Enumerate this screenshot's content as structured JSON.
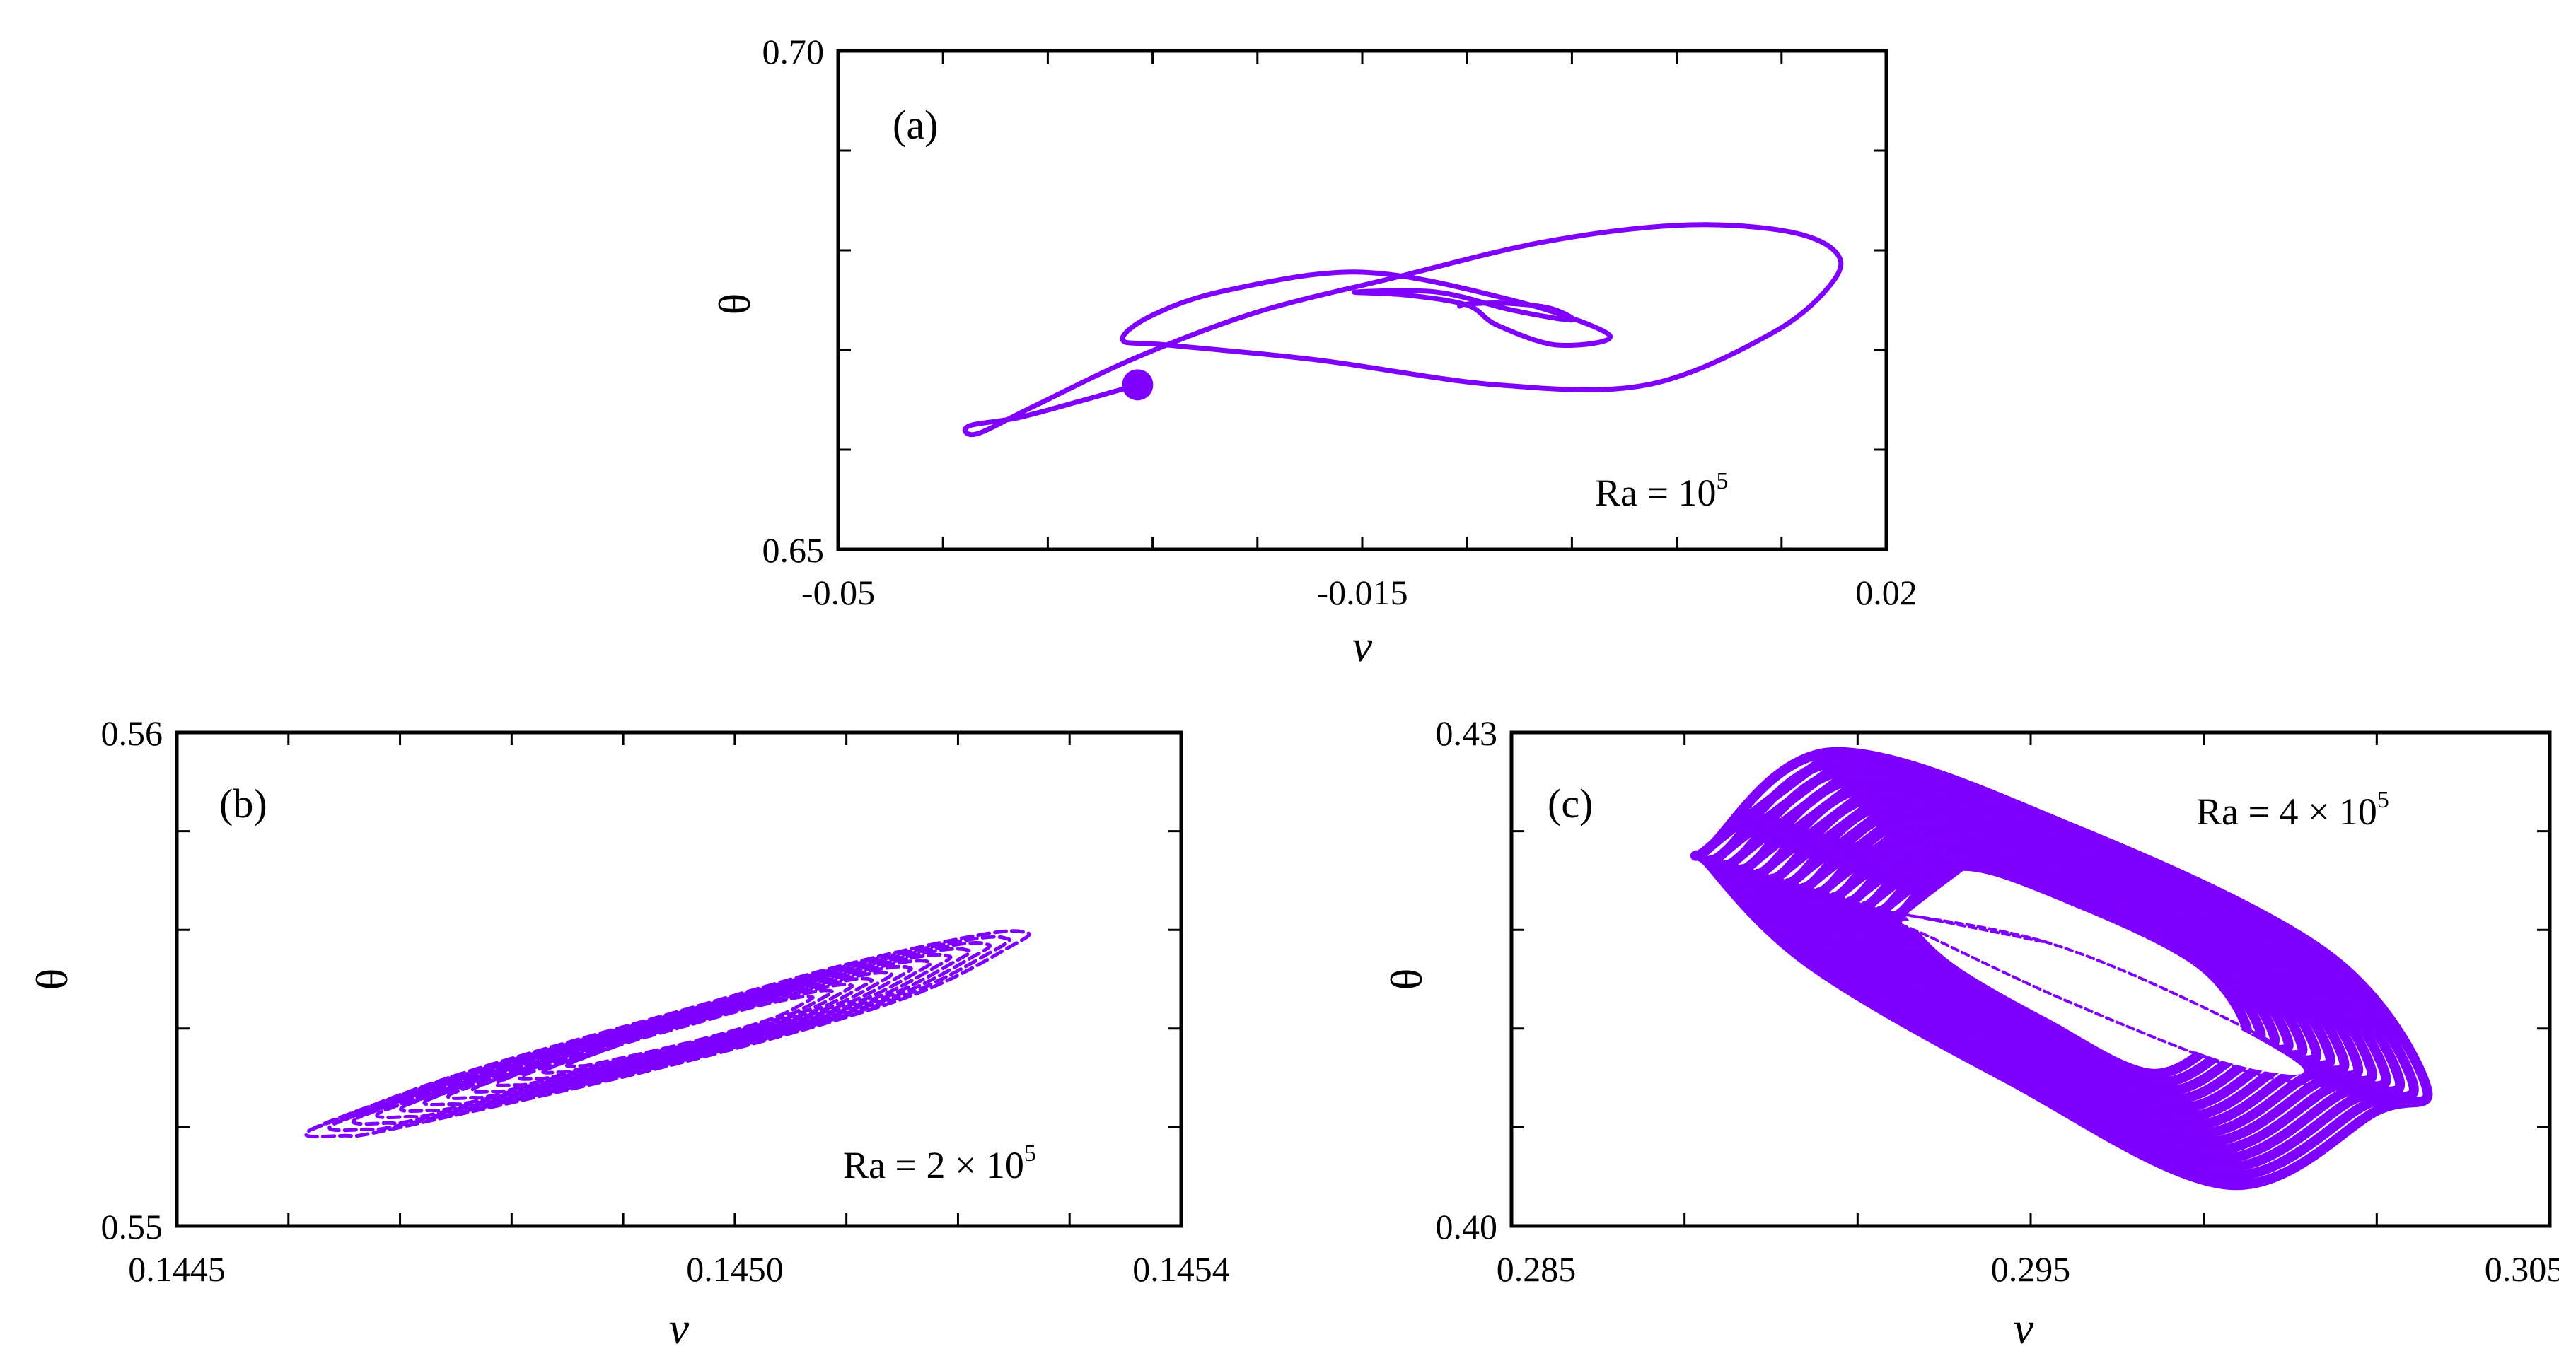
{
  "chart_data": [
    {
      "type": "line",
      "panel_label": "(a)",
      "xlabel": "v",
      "ylabel": "θ",
      "xlim": [
        -0.05,
        0.02
      ],
      "ylim": [
        0.65,
        0.7
      ],
      "x_ticks": [
        "-0.05",
        "-0.015",
        "0.02"
      ],
      "y_ticks": [
        "0.65",
        "0.70"
      ],
      "annotation": {
        "base": "Ra = 10",
        "exponent": "5"
      },
      "color": "#7f00ff",
      "series": [
        {
          "name": "trajectory",
          "points": [
            [
              -0.03,
              0.6665
            ],
            [
              -0.034,
              0.6648
            ],
            [
              -0.038,
              0.6632
            ],
            [
              -0.041,
              0.6625
            ],
            [
              -0.0415,
              0.6618
            ],
            [
              -0.0405,
              0.6617
            ],
            [
              -0.037,
              0.6643
            ],
            [
              -0.03,
              0.6693
            ],
            [
              -0.022,
              0.6738
            ],
            [
              -0.013,
              0.6772
            ],
            [
              -0.003,
              0.6808
            ],
            [
              0.006,
              0.6825
            ],
            [
              0.013,
              0.682
            ],
            [
              0.0165,
              0.68
            ],
            [
              0.0165,
              0.677
            ],
            [
              0.0125,
              0.6718
            ],
            [
              0.004,
              0.6665
            ],
            [
              -0.006,
              0.6665
            ],
            [
              -0.018,
              0.669
            ],
            [
              -0.028,
              0.6705
            ],
            [
              -0.031,
              0.671
            ],
            [
              -0.029,
              0.6735
            ],
            [
              -0.024,
              0.676
            ],
            [
              -0.015,
              0.6778
            ],
            [
              -0.005,
              0.675
            ],
            [
              0.0015,
              0.6715
            ],
            [
              -0.002,
              0.6705
            ],
            [
              -0.006,
              0.6725
            ],
            [
              -0.008,
              0.6745
            ],
            [
              -0.012,
              0.6755
            ],
            [
              -0.0155,
              0.6758
            ],
            [
              -0.01,
              0.6758
            ],
            [
              -0.005,
              0.674
            ],
            [
              -0.001,
              0.673
            ],
            [
              -0.0025,
              0.6742
            ],
            [
              -0.0055,
              0.6747
            ],
            [
              -0.008,
              0.6746
            ],
            [
              -0.0085,
              0.6744
            ]
          ]
        }
      ],
      "start_marker": [
        -0.03,
        0.6665
      ]
    },
    {
      "type": "line",
      "panel_label": "(b)",
      "xlabel": "v",
      "ylabel": "θ",
      "xlim": [
        0.1445,
        0.1454
      ],
      "ylim": [
        0.55,
        0.56
      ],
      "x_ticks": [
        "0.1445",
        "0.1450",
        "0.1454"
      ],
      "y_ticks": [
        "0.55",
        "0.56"
      ],
      "annotation": {
        "base": "Ra = 2 × 10",
        "exponent": "5"
      },
      "color": "#7f00ff",
      "series": [
        {
          "name": "attractor",
          "style": "dashed",
          "loop": [
            [
              0.14462,
              0.55195
            ],
            [
              0.14475,
              0.55305
            ],
            [
              0.14495,
              0.55435
            ],
            [
              0.1451,
              0.5553
            ],
            [
              0.14522,
              0.5559
            ],
            [
              0.14526,
              0.55595
            ],
            [
              0.14525,
              0.5557
            ],
            [
              0.14515,
              0.5546
            ],
            [
              0.14495,
              0.5533
            ],
            [
              0.1447,
              0.552
            ],
            [
              0.14465,
              0.55183
            ]
          ],
          "center": [
            0.14497,
            0.55397
          ],
          "scales": [
            1.0,
            0.94,
            0.88,
            0.82,
            0.76,
            0.7,
            0.64,
            0.58,
            0.52,
            0.46,
            0.4,
            0.34
          ]
        }
      ]
    },
    {
      "type": "line",
      "panel_label": "(c)",
      "xlabel": "v",
      "ylabel": "θ",
      "xlim": [
        0.2845,
        0.3055
      ],
      "ylim": [
        0.4,
        0.43
      ],
      "x_ticks": [
        "0.285",
        "0.295",
        "0.305"
      ],
      "y_ticks": [
        "0.40",
        "0.43"
      ],
      "annotation": {
        "base": "Ra = 4 × 10",
        "exponent": "5"
      },
      "color": "#7f00ff",
      "series": [
        {
          "name": "attractor",
          "style": "dense",
          "loop": [
            [
              0.2885,
              0.423
            ],
            [
              0.291,
              0.4288
            ],
            [
              0.296,
              0.424
            ],
            [
              0.301,
              0.4165
            ],
            [
              0.303,
              0.4085
            ],
            [
              0.302,
              0.407
            ],
            [
              0.299,
              0.4025
            ],
            [
              0.2945,
              0.409
            ],
            [
              0.2905,
              0.416
            ],
            [
              0.2885,
              0.422
            ]
          ],
          "center": [
            0.296,
            0.4155
          ],
          "scales": [
            1.0,
            0.96,
            0.92,
            0.88,
            0.84,
            0.8,
            0.76,
            0.72,
            0.68,
            0.64,
            0.6,
            0.56,
            0.52,
            0.48
          ],
          "hole": [
            [
              0.2925,
              0.4185
            ],
            [
              0.2955,
              0.4168
            ],
            [
              0.2985,
              0.413
            ],
            [
              0.3005,
              0.4095
            ],
            [
              0.299,
              0.41
            ],
            [
              0.296,
              0.4135
            ],
            [
              0.2935,
              0.417
            ]
          ]
        }
      ]
    }
  ]
}
